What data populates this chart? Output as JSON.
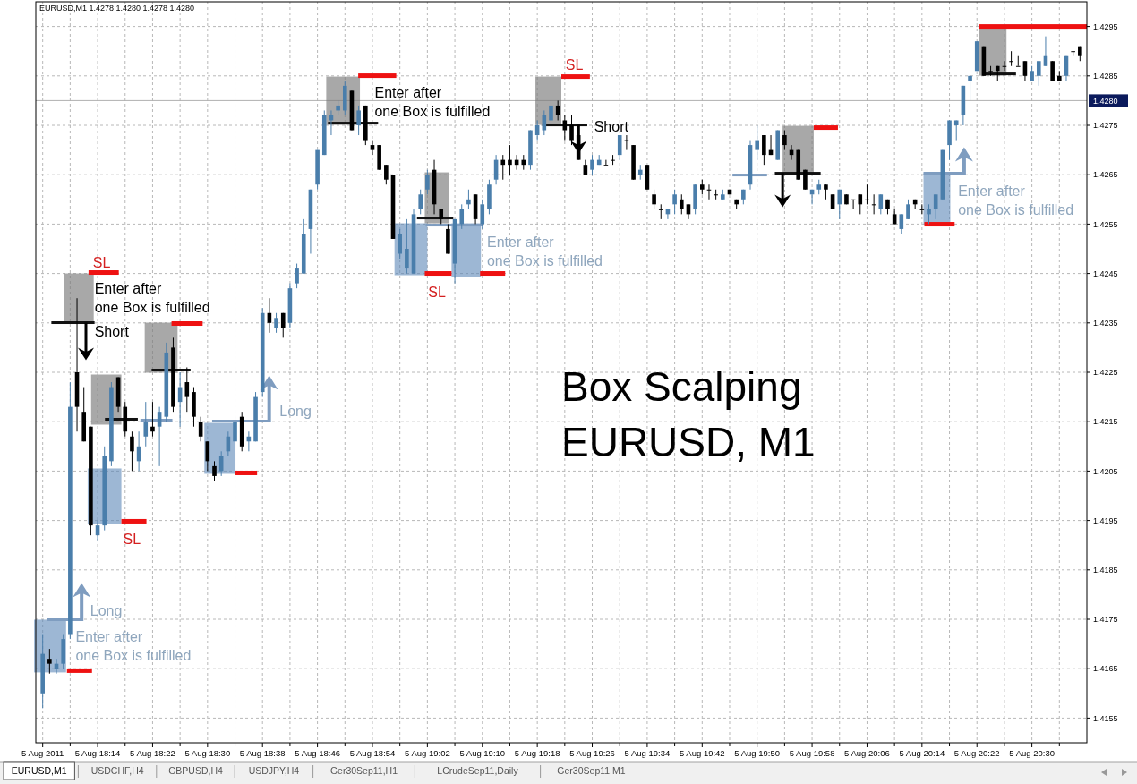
{
  "chart_data": {
    "type": "candlestick",
    "title": "EURUSD,M1  1.4278 1.4280 1.4278 1.4280",
    "subtitle": "Box Scalping\nEURUSD, M1",
    "colors": [
      "#4a7eab",
      "#000000",
      "#4a7eab",
      "#4a7eab",
      "#4a7eab",
      "#000000",
      "#000000",
      "#000000",
      "#4a7eab",
      "#4a7eab",
      "#4a7eab",
      "#000000",
      "#000000",
      "#000000",
      "#4a7eab",
      "#4a7eab",
      "#000000",
      "#4a7eab",
      "#4a7eab",
      "#000000",
      "#4a7eab",
      "#000000",
      "#000000",
      "#000000",
      "#000000",
      "#000000",
      "#4a7eab",
      "#4a7eab",
      "#4a7eab",
      "#000000",
      "#4a7eab",
      "#4a7eab",
      "#4a7eab",
      "#000000",
      "#4a7eab",
      "#000000",
      "#4a7eab",
      "#4a7eab",
      "#4a7eab",
      "#4a7eab",
      "#4a7eab",
      "#4a7eab",
      "#4a7eab",
      "#4a7eab",
      "#4a7eab",
      "#000000",
      "#4a7eab",
      "#000000",
      "#000000",
      "#000000",
      "#000000",
      "#000000",
      "#4a7eab",
      "#4a7eab",
      "#4a7eab",
      "#4a7eab",
      "#4a7eab",
      "#000000",
      "#000000",
      "#000000",
      "#4a7eab",
      "#4a7eab",
      "#4a7eab",
      "#000000",
      "#4a7eab",
      "#4a7eab",
      "#4a7eab",
      "#000000",
      "#000000",
      "#000000",
      "#000000",
      "#4a7eab",
      "#4a7eab",
      "#4a7eab",
      "#4a7eab",
      "#000000",
      "#000000",
      "#000000",
      "#000000",
      "#000000",
      "#4a7eab",
      "#4a7eab",
      "#000000",
      "#000000",
      "#4a7eab",
      "#000000",
      "#000000",
      "#4a7eab",
      "#000000",
      "#000000",
      "#000000",
      "#4a7eab",
      "#4a7eab",
      "#000000",
      "#000000",
      "#4a7eab",
      "#000000",
      "#000000",
      "#000000",
      "#4a7eab",
      "#000000",
      "#000000",
      "#4a7eab",
      "#4a7eab",
      "#4a7eab",
      "#000000",
      "#000000",
      "#4a7eab",
      "#000000",
      "#000000",
      "#000000",
      "#000000",
      "#4a7eab",
      "#4a7eab",
      "#000000",
      "#000000",
      "#4a7eab",
      "#000000",
      "#000000",
      "#000000",
      "#000000",
      "#000000",
      "#4a7eab",
      "#000000",
      "#000000",
      "#4a7eab",
      "#4a7eab",
      "#000000",
      "#000000",
      "#4a7eab",
      "#4a7eab",
      "#4a7eab",
      "#4a7eab",
      "#4a7eab",
      "#4a7eab",
      "#4a7eab",
      "#4a7eab",
      "#000000",
      "#000000",
      "#000000",
      "#000000",
      "#000000",
      "#000000",
      "#000000",
      "#4a7eab",
      "#4a7eab",
      "#4a7eab",
      "#000000",
      "#000000",
      "#4a7eab",
      "#000000",
      "#000000"
    ],
    "x": [
      "2011-08-05T18:06",
      "2011-08-05T18:07",
      "2011-08-05T18:08",
      "2011-08-05T18:09",
      "2011-08-05T18:10",
      "2011-08-05T18:11",
      "2011-08-05T18:12",
      "2011-08-05T18:13",
      "2011-08-05T18:14",
      "2011-08-05T18:15",
      "2011-08-05T18:16",
      "2011-08-05T18:17",
      "2011-08-05T18:18",
      "2011-08-05T18:19",
      "2011-08-05T18:20",
      "2011-08-05T18:21",
      "2011-08-05T18:22",
      "2011-08-05T18:23",
      "2011-08-05T18:24",
      "2011-08-05T18:25",
      "2011-08-05T18:26",
      "2011-08-05T18:27",
      "2011-08-05T18:28",
      "2011-08-05T18:29",
      "2011-08-05T18:30",
      "2011-08-05T18:31",
      "2011-08-05T18:32",
      "2011-08-05T18:33",
      "2011-08-05T18:34",
      "2011-08-05T18:35",
      "2011-08-05T18:36",
      "2011-08-05T18:37",
      "2011-08-05T18:38",
      "2011-08-05T18:39",
      "2011-08-05T18:40",
      "2011-08-05T18:41",
      "2011-08-05T18:42",
      "2011-08-05T18:43",
      "2011-08-05T18:44",
      "2011-08-05T18:45",
      "2011-08-05T18:46",
      "2011-08-05T18:47",
      "2011-08-05T18:48",
      "2011-08-05T18:49",
      "2011-08-05T18:50",
      "2011-08-05T18:51",
      "2011-08-05T18:52",
      "2011-08-05T18:53",
      "2011-08-05T18:54",
      "2011-08-05T18:55",
      "2011-08-05T18:56",
      "2011-08-05T18:57",
      "2011-08-05T18:58",
      "2011-08-05T18:59",
      "2011-08-05T19:00",
      "2011-08-05T19:01",
      "2011-08-05T19:02",
      "2011-08-05T19:03",
      "2011-08-05T19:04",
      "2011-08-05T19:05",
      "2011-08-05T19:06",
      "2011-08-05T19:07",
      "2011-08-05T19:08",
      "2011-08-05T19:09",
      "2011-08-05T19:10",
      "2011-08-05T19:11",
      "2011-08-05T19:12",
      "2011-08-05T19:13",
      "2011-08-05T19:14",
      "2011-08-05T19:15",
      "2011-08-05T19:16",
      "2011-08-05T19:17",
      "2011-08-05T19:18",
      "2011-08-05T19:19",
      "2011-08-05T19:20",
      "2011-08-05T19:21",
      "2011-08-05T19:22",
      "2011-08-05T19:23",
      "2011-08-05T19:24",
      "2011-08-05T19:25",
      "2011-08-05T19:26",
      "2011-08-05T19:27",
      "2011-08-05T19:28",
      "2011-08-05T19:29",
      "2011-08-05T19:30",
      "2011-08-05T19:31",
      "2011-08-05T19:32",
      "2011-08-05T19:33",
      "2011-08-05T19:34",
      "2011-08-05T19:35",
      "2011-08-05T19:36",
      "2011-08-05T19:37",
      "2011-08-05T19:38",
      "2011-08-05T19:39",
      "2011-08-05T19:40",
      "2011-08-05T19:41",
      "2011-08-05T19:42",
      "2011-08-05T19:43",
      "2011-08-05T19:44",
      "2011-08-05T19:45",
      "2011-08-05T19:46",
      "2011-08-05T19:47",
      "2011-08-05T19:48",
      "2011-08-05T19:49",
      "2011-08-05T19:50",
      "2011-08-05T19:51",
      "2011-08-05T19:52",
      "2011-08-05T19:53",
      "2011-08-05T19:54",
      "2011-08-05T19:55",
      "2011-08-05T19:56",
      "2011-08-05T19:57",
      "2011-08-05T19:58",
      "2011-08-05T19:59",
      "2011-08-05T20:00",
      "2011-08-05T20:01",
      "2011-08-05T20:02",
      "2011-08-05T20:03",
      "2011-08-05T20:04",
      "2011-08-05T20:05",
      "2011-08-05T20:06",
      "2011-08-05T20:07",
      "2011-08-05T20:08",
      "2011-08-05T20:09",
      "2011-08-05T20:10",
      "2011-08-05T20:11",
      "2011-08-05T20:12",
      "2011-08-05T20:13",
      "2011-08-05T20:14",
      "2011-08-05T20:15",
      "2011-08-05T20:16",
      "2011-08-05T20:17",
      "2011-08-05T20:18",
      "2011-08-05T20:19",
      "2011-08-05T20:20",
      "2011-08-05T20:21",
      "2011-08-05T20:22",
      "2011-08-05T20:23",
      "2011-08-05T20:24",
      "2011-08-05T20:25",
      "2011-08-05T20:26",
      "2011-08-05T20:27",
      "2011-08-05T20:28",
      "2011-08-05T20:29",
      "2011-08-05T20:30",
      "2011-08-05T20:31",
      "2011-08-05T20:32",
      "2011-08-05T20:33",
      "2011-08-05T20:34",
      "2011-08-05T20:35",
      "2011-08-05T20:36",
      "2011-08-05T20:37"
    ],
    "ohlc": [
      [
        1.416,
        1.4172,
        1.4157,
        1.4168
      ],
      [
        1.4167,
        1.4169,
        1.4164,
        1.4166
      ],
      [
        1.4165,
        1.4167,
        1.4164,
        1.4166
      ],
      [
        1.4166,
        1.4172,
        1.4165,
        1.4171
      ],
      [
        1.4172,
        1.4223,
        1.4171,
        1.4218
      ],
      [
        1.4225,
        1.424,
        1.4213,
        1.4218
      ],
      [
        1.4217,
        1.4222,
        1.4211,
        1.4211
      ],
      [
        1.4214,
        1.4214,
        1.4192,
        1.4194
      ],
      [
        1.4192,
        1.4195,
        1.4191,
        1.4194
      ],
      [
        1.4194,
        1.421,
        1.4193,
        1.4208
      ],
      [
        1.4207,
        1.4223,
        1.4206,
        1.4222
      ],
      [
        1.4224,
        1.4224,
        1.4217,
        1.4218
      ],
      [
        1.4218,
        1.4219,
        1.4212,
        1.4213
      ],
      [
        1.4212,
        1.4213,
        1.4205,
        1.4209
      ],
      [
        1.4207,
        1.4213,
        1.4205,
        1.421
      ],
      [
        1.4212,
        1.4219,
        1.421,
        1.4215
      ],
      [
        1.4214,
        1.4219,
        1.4212,
        1.4213
      ],
      [
        1.4214,
        1.4218,
        1.4206,
        1.4217
      ],
      [
        1.4216,
        1.4231,
        1.4215,
        1.4229
      ],
      [
        1.423,
        1.4232,
        1.4217,
        1.4218
      ],
      [
        1.4219,
        1.4225,
        1.4214,
        1.4222
      ],
      [
        1.4223,
        1.4226,
        1.4217,
        1.422
      ],
      [
        1.4221,
        1.4222,
        1.4214,
        1.4216
      ],
      [
        1.4215,
        1.4216,
        1.4211,
        1.4212
      ],
      [
        1.4211,
        1.4211,
        1.4205,
        1.4207
      ],
      [
        1.4206,
        1.4207,
        1.4203,
        1.4204
      ],
      [
        1.4205,
        1.4209,
        1.4204,
        1.4208
      ],
      [
        1.4209,
        1.4213,
        1.4208,
        1.4212
      ],
      [
        1.4211,
        1.4216,
        1.421,
        1.4215
      ],
      [
        1.4216,
        1.4217,
        1.4209,
        1.421
      ],
      [
        1.4211,
        1.4213,
        1.4209,
        1.4212
      ],
      [
        1.4211,
        1.4221,
        1.4211,
        1.422
      ],
      [
        1.4221,
        1.4238,
        1.422,
        1.4237
      ],
      [
        1.4237,
        1.424,
        1.4233,
        1.4235
      ],
      [
        1.4234,
        1.4237,
        1.4233,
        1.4236
      ],
      [
        1.4237,
        1.4237,
        1.4232,
        1.4234
      ],
      [
        1.4235,
        1.4243,
        1.4234,
        1.4242
      ],
      [
        1.4243,
        1.4247,
        1.4242,
        1.4246
      ],
      [
        1.4245,
        1.4256,
        1.4245,
        1.4253
      ],
      [
        1.4254,
        1.4262,
        1.4249,
        1.4262
      ],
      [
        1.4263,
        1.427,
        1.4262,
        1.427
      ],
      [
        1.4269,
        1.4278,
        1.4269,
        1.4277
      ],
      [
        1.4276,
        1.4278,
        1.4273,
        1.4277
      ],
      [
        1.4278,
        1.428,
        1.4277,
        1.4279
      ],
      [
        1.4278,
        1.4284,
        1.4277,
        1.4283
      ],
      [
        1.4282,
        1.4282,
        1.4274,
        1.4274
      ],
      [
        1.4275,
        1.4279,
        1.4273,
        1.4278
      ],
      [
        1.4279,
        1.4279,
        1.4271,
        1.4272
      ],
      [
        1.4271,
        1.4272,
        1.4269,
        1.427
      ],
      [
        1.4271,
        1.4271,
        1.4266,
        1.4266
      ],
      [
        1.4267,
        1.4267,
        1.4263,
        1.4264
      ],
      [
        1.4265,
        1.4265,
        1.4252,
        1.4252
      ],
      [
        1.4249,
        1.4254,
        1.4248,
        1.4253
      ],
      [
        1.4246,
        1.4256,
        1.4245,
        1.425
      ],
      [
        1.4245,
        1.4258,
        1.4245,
        1.4257
      ],
      [
        1.4258,
        1.4262,
        1.4257,
        1.4261
      ],
      [
        1.4262,
        1.4266,
        1.4261,
        1.4265
      ],
      [
        1.4266,
        1.4268,
        1.4257,
        1.4259
      ],
      [
        1.4258,
        1.4258,
        1.4255,
        1.4256
      ],
      [
        1.4254,
        1.4255,
        1.4249,
        1.4249
      ],
      [
        1.4247,
        1.4256,
        1.4243,
        1.4256
      ],
      [
        1.4255,
        1.4259,
        1.4254,
        1.4258
      ],
      [
        1.4259,
        1.4262,
        1.4258,
        1.426
      ],
      [
        1.4261,
        1.4261,
        1.4255,
        1.4256
      ],
      [
        1.4255,
        1.426,
        1.4254,
        1.4259
      ],
      [
        1.4258,
        1.4264,
        1.4257,
        1.4263
      ],
      [
        1.4264,
        1.4269,
        1.4263,
        1.4268
      ],
      [
        1.4268,
        1.4269,
        1.4264,
        1.4267
      ],
      [
        1.4268,
        1.4271,
        1.4265,
        1.4267
      ],
      [
        1.4268,
        1.4269,
        1.4266,
        1.4267
      ],
      [
        1.4268,
        1.4269,
        1.4266,
        1.4267
      ],
      [
        1.4267,
        1.4274,
        1.4266,
        1.4274
      ],
      [
        1.4273,
        1.4276,
        1.4272,
        1.4275
      ],
      [
        1.4274,
        1.4278,
        1.4273,
        1.4277
      ],
      [
        1.4276,
        1.428,
        1.4275,
        1.4279
      ],
      [
        1.4279,
        1.428,
        1.4276,
        1.4277
      ],
      [
        1.4276,
        1.4277,
        1.4272,
        1.4274
      ],
      [
        1.4275,
        1.4277,
        1.4271,
        1.4272
      ],
      [
        1.4273,
        1.4274,
        1.4268,
        1.4268
      ],
      [
        1.4267,
        1.4268,
        1.4265,
        1.4265
      ],
      [
        1.4266,
        1.4269,
        1.4265,
        1.4268
      ],
      [
        1.4267,
        1.4269,
        1.4267,
        1.4268
      ],
      [
        1.4267,
        1.4268,
        1.4267,
        1.4267
      ],
      [
        1.4268,
        1.4269,
        1.4267,
        1.4268
      ],
      [
        1.4269,
        1.4273,
        1.4268,
        1.4273
      ],
      [
        1.4272,
        1.4273,
        1.427,
        1.4272
      ],
      [
        1.4271,
        1.4271,
        1.4264,
        1.4264
      ],
      [
        1.4265,
        1.4267,
        1.4264,
        1.4266
      ],
      [
        1.4267,
        1.4267,
        1.4262,
        1.4262
      ],
      [
        1.4261,
        1.4262,
        1.4258,
        1.4259
      ],
      [
        1.4258,
        1.4259,
        1.4256,
        1.4258
      ],
      [
        1.4257,
        1.4258,
        1.4256,
        1.4258
      ],
      [
        1.4259,
        1.4262,
        1.4257,
        1.4261
      ],
      [
        1.426,
        1.4261,
        1.4257,
        1.4258
      ],
      [
        1.4259,
        1.4259,
        1.4256,
        1.4257
      ],
      [
        1.4258,
        1.4263,
        1.4257,
        1.4263
      ],
      [
        1.4263,
        1.4264,
        1.4261,
        1.4262
      ],
      [
        1.4262,
        1.4263,
        1.426,
        1.4262
      ],
      [
        1.4261,
        1.4262,
        1.426,
        1.4261
      ],
      [
        1.426,
        1.4262,
        1.426,
        1.4261
      ],
      [
        1.4262,
        1.4262,
        1.4261,
        1.4261
      ],
      [
        1.426,
        1.426,
        1.4258,
        1.4259
      ],
      [
        1.426,
        1.4262,
        1.4259,
        1.4262
      ],
      [
        1.4263,
        1.4272,
        1.4262,
        1.4271
      ],
      [
        1.427,
        1.4275,
        1.4268,
        1.4272
      ],
      [
        1.4273,
        1.4273,
        1.4267,
        1.4269
      ],
      [
        1.427,
        1.4273,
        1.4269,
        1.4269
      ],
      [
        1.4268,
        1.4274,
        1.4268,
        1.4274
      ],
      [
        1.4273,
        1.4274,
        1.427,
        1.4271
      ],
      [
        1.427,
        1.4271,
        1.4268,
        1.4269
      ],
      [
        1.427,
        1.427,
        1.4264,
        1.4264
      ],
      [
        1.4266,
        1.4266,
        1.4262,
        1.4262
      ],
      [
        1.4261,
        1.4262,
        1.4259,
        1.4262
      ],
      [
        1.4262,
        1.4264,
        1.4261,
        1.4263
      ],
      [
        1.4263,
        1.4263,
        1.426,
        1.4262
      ],
      [
        1.4261,
        1.4261,
        1.4258,
        1.4258
      ],
      [
        1.4259,
        1.4262,
        1.4256,
        1.4262
      ],
      [
        1.4261,
        1.4261,
        1.4259,
        1.4259
      ],
      [
        1.426,
        1.426,
        1.4258,
        1.426
      ],
      [
        1.4261,
        1.4261,
        1.4257,
        1.4259
      ],
      [
        1.426,
        1.4263,
        1.4259,
        1.426
      ],
      [
        1.4259,
        1.4261,
        1.4257,
        1.4259
      ],
      [
        1.4258,
        1.4261,
        1.4257,
        1.4261
      ],
      [
        1.426,
        1.426,
        1.4257,
        1.4258
      ],
      [
        1.4257,
        1.4258,
        1.4255,
        1.4255
      ],
      [
        1.4254,
        1.4257,
        1.4253,
        1.4257
      ],
      [
        1.4256,
        1.426,
        1.4256,
        1.4259
      ],
      [
        1.426,
        1.426,
        1.4258,
        1.4259
      ],
      [
        1.4258,
        1.4259,
        1.4257,
        1.4258
      ],
      [
        1.4257,
        1.4259,
        1.4255,
        1.4258
      ],
      [
        1.4258,
        1.4261,
        1.4256,
        1.4261
      ],
      [
        1.426,
        1.427,
        1.426,
        1.427
      ],
      [
        1.4271,
        1.4276,
        1.4268,
        1.4276
      ],
      [
        1.4275,
        1.4276,
        1.4272,
        1.4276
      ],
      [
        1.4277,
        1.4283,
        1.4275,
        1.4283
      ],
      [
        1.4284,
        1.4285,
        1.428,
        1.4285
      ],
      [
        1.4286,
        1.4292,
        1.4286,
        1.4292
      ],
      [
        1.4291,
        1.4291,
        1.4285,
        1.4285
      ],
      [
        1.4286,
        1.4287,
        1.4285,
        1.4286
      ],
      [
        1.4287,
        1.4287,
        1.4284,
        1.4286
      ],
      [
        1.4287,
        1.4288,
        1.4286,
        1.4287
      ],
      [
        1.4288,
        1.429,
        1.4287,
        1.4288
      ],
      [
        1.4287,
        1.4289,
        1.4287,
        1.4287
      ],
      [
        1.4288,
        1.4288,
        1.4284,
        1.4285
      ],
      [
        1.4284,
        1.4287,
        1.4284,
        1.4286
      ],
      [
        1.4285,
        1.4288,
        1.4283,
        1.4288
      ],
      [
        1.4287,
        1.4293,
        1.4287,
        1.4289
      ],
      [
        1.4288,
        1.4288,
        1.4284,
        1.4284
      ],
      [
        1.4285,
        1.4286,
        1.4284,
        1.4284
      ],
      [
        1.4285,
        1.4289,
        1.4284,
        1.4289
      ],
      [
        1.429,
        1.429,
        1.4289,
        1.429
      ],
      [
        1.4291,
        1.4291,
        1.4288,
        1.4289
      ]
    ],
    "xlim": [
      "2011-08-05T18:05",
      "2011-08-05T20:38"
    ],
    "xticks": [
      {
        "value": "2011-08-05T18:06",
        "label": "5 Aug 2011"
      },
      {
        "value": "2011-08-05T18:10",
        "label": null
      },
      {
        "value": "2011-08-05T18:14",
        "label": "5 Aug 18:14"
      },
      {
        "value": "2011-08-05T18:18",
        "label": null
      },
      {
        "value": "2011-08-05T18:22",
        "label": "5 Aug 18:22"
      },
      {
        "value": "2011-08-05T18:26",
        "label": null
      },
      {
        "value": "2011-08-05T18:30",
        "label": "5 Aug 18:30"
      },
      {
        "value": "2011-08-05T18:34",
        "label": null
      },
      {
        "value": "2011-08-05T18:38",
        "label": "5 Aug 18:38"
      },
      {
        "value": "2011-08-05T18:42",
        "label": null
      },
      {
        "value": "2011-08-05T18:46",
        "label": "5 Aug 18:46"
      },
      {
        "value": "2011-08-05T18:50",
        "label": null
      },
      {
        "value": "2011-08-05T18:54",
        "label": "5 Aug 18:54"
      },
      {
        "value": "2011-08-05T18:58",
        "label": null
      },
      {
        "value": "2011-08-05T19:02",
        "label": "5 Aug 19:02"
      },
      {
        "value": "2011-08-05T19:06",
        "label": null
      },
      {
        "value": "2011-08-05T19:10",
        "label": "5 Aug 19:10"
      },
      {
        "value": "2011-08-05T19:14",
        "label": null
      },
      {
        "value": "2011-08-05T19:18",
        "label": "5 Aug 19:18"
      },
      {
        "value": "2011-08-05T19:22",
        "label": null
      },
      {
        "value": "2011-08-05T19:26",
        "label": "5 Aug 19:26"
      },
      {
        "value": "2011-08-05T19:30",
        "label": null
      },
      {
        "value": "2011-08-05T19:34",
        "label": "5 Aug 19:34"
      },
      {
        "value": "2011-08-05T19:38",
        "label": null
      },
      {
        "value": "2011-08-05T19:42",
        "label": "5 Aug 19:42"
      },
      {
        "value": "2011-08-05T19:46",
        "label": null
      },
      {
        "value": "2011-08-05T19:50",
        "label": "5 Aug 19:50"
      },
      {
        "value": "2011-08-05T19:54",
        "label": null
      },
      {
        "value": "2011-08-05T19:58",
        "label": "5 Aug 19:58"
      },
      {
        "value": "2011-08-05T20:02",
        "label": null
      },
      {
        "value": "2011-08-05T20:06",
        "label": "5 Aug 20:06"
      },
      {
        "value": "2011-08-05T20:10",
        "label": null
      },
      {
        "value": "2011-08-05T20:14",
        "label": "5 Aug 20:14"
      },
      {
        "value": "2011-08-05T20:18",
        "label": null
      },
      {
        "value": "2011-08-05T20:22",
        "label": "5 Aug 20:22"
      },
      {
        "value": "2011-08-05T20:26",
        "label": null
      },
      {
        "value": "2011-08-05T20:30",
        "label": "5 Aug 20:30"
      },
      {
        "value": "2011-08-05T20:34",
        "label": null
      }
    ],
    "ylim": [
      1.415,
      1.43
    ],
    "yticks": [
      1.4155,
      1.4165,
      1.4175,
      1.4185,
      1.4195,
      1.4205,
      1.4215,
      1.4225,
      1.4235,
      1.4245,
      1.4255,
      1.4265,
      1.4275,
      1.4285,
      1.4295
    ],
    "grid": true,
    "ref_lines": [
      {
        "axis": "y",
        "value": 1.428,
        "label": "1.4280",
        "color": "#b0b0b0"
      }
    ],
    "annotations": [
      "Enter after\none Box is fulfilled",
      "Short",
      "SL",
      "SL",
      "Long",
      "Enter after\none Box is fulfilled",
      "Long",
      "Enter after\none Box is fulfilled",
      "SL",
      "Enter after\none Box is fulfilled",
      "SL",
      "Short",
      "Enter after\none Box is fulfilled",
      "EURUSD,M1",
      "USDCHF,H4",
      "GBPUSD,H4",
      "USDJPY,H4",
      "Ger30Sep11,H1",
      "LCrudeSep11,Daily",
      "Ger30Sep11,M1"
    ]
  }
}
